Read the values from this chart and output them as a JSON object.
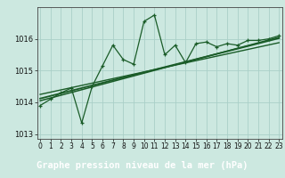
{
  "title": "Graphe pression niveau de la mer (hPa)",
  "background_color": "#cce8e0",
  "plot_bg_color": "#cce8e0",
  "label_bg_color": "#2d6b3c",
  "label_text_color": "#ffffff",
  "grid_color": "#aacfc8",
  "line_color": "#1a5c28",
  "x_values": [
    0,
    1,
    2,
    3,
    4,
    5,
    6,
    7,
    8,
    9,
    10,
    11,
    12,
    13,
    14,
    15,
    16,
    17,
    18,
    19,
    20,
    21,
    22,
    23
  ],
  "y_values": [
    1013.9,
    1014.1,
    1014.3,
    1014.45,
    1013.35,
    1014.5,
    1015.15,
    1015.8,
    1015.35,
    1015.2,
    1016.55,
    1016.75,
    1015.5,
    1015.8,
    1015.25,
    1015.85,
    1015.9,
    1015.75,
    1015.85,
    1015.8,
    1015.95,
    1015.95,
    1016.0,
    1016.1
  ],
  "trend1_x": [
    0,
    23
  ],
  "trend1_y": [
    1014.05,
    1016.05
  ],
  "trend2_x": [
    0,
    23
  ],
  "trend2_y": [
    1014.12,
    1016.02
  ],
  "trend3_x": [
    0,
    23
  ],
  "trend3_y": [
    1014.25,
    1015.88
  ],
  "xlim": [
    -0.3,
    23.3
  ],
  "ylim": [
    1012.85,
    1017.0
  ],
  "yticks": [
    1013,
    1014,
    1015,
    1016
  ],
  "xticks": [
    0,
    1,
    2,
    3,
    4,
    5,
    6,
    7,
    8,
    9,
    10,
    11,
    12,
    13,
    14,
    15,
    16,
    17,
    18,
    19,
    20,
    21,
    22,
    23
  ],
  "title_fontsize": 7.5,
  "tick_fontsize": 6.0
}
